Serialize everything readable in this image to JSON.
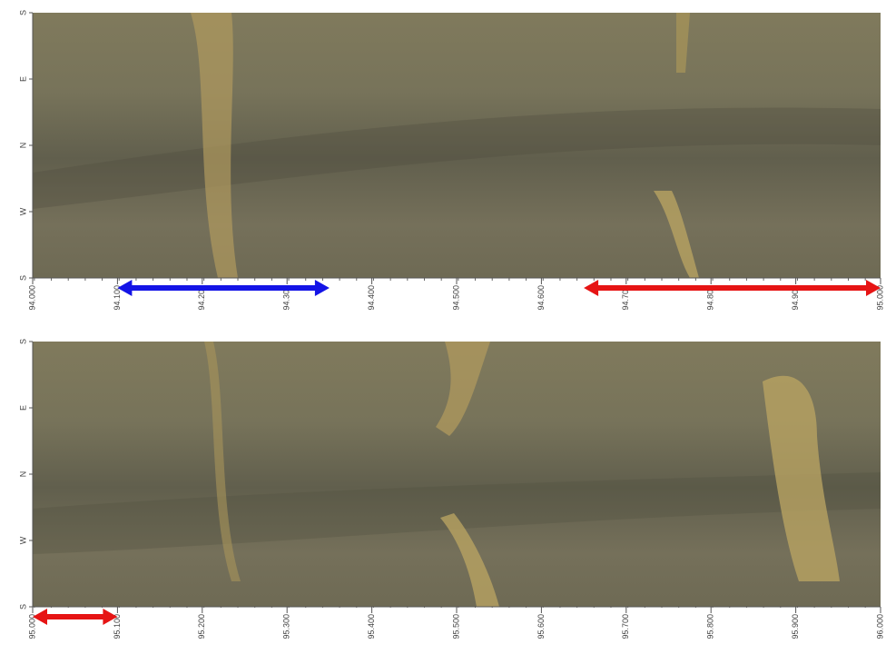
{
  "panels": [
    {
      "xlim": [
        94,
        95
      ],
      "xticks": [
        {
          "value": 94,
          "label": "94.000"
        },
        {
          "value": 94.1,
          "label": "94.100"
        },
        {
          "value": 94.2,
          "label": "94.200"
        },
        {
          "value": 94.3,
          "label": "94.300"
        },
        {
          "value": 94.4,
          "label": "94.400"
        },
        {
          "value": 94.5,
          "label": "94.500"
        },
        {
          "value": 94.6,
          "label": "94.600"
        },
        {
          "value": 94.7,
          "label": "94.700"
        },
        {
          "value": 94.8,
          "label": "94.800"
        },
        {
          "value": 94.9,
          "label": "94.900"
        },
        {
          "value": 95,
          "label": "95.000"
        }
      ],
      "y_labels": [
        "S",
        "E",
        "N",
        "W",
        "S"
      ],
      "arrows": [
        {
          "from": 94.1,
          "to": 94.35,
          "color": "#1414e6"
        },
        {
          "from": 94.65,
          "to": 95,
          "color": "#e61414"
        }
      ]
    },
    {
      "xlim": [
        95,
        96
      ],
      "xticks": [
        {
          "value": 95,
          "label": "95.000"
        },
        {
          "value": 95.1,
          "label": "95.100"
        },
        {
          "value": 95.2,
          "label": "95.200"
        },
        {
          "value": 95.3,
          "label": "95.300"
        },
        {
          "value": 95.4,
          "label": "95.400"
        },
        {
          "value": 95.5,
          "label": "95.500"
        },
        {
          "value": 95.6,
          "label": "95.600"
        },
        {
          "value": 95.7,
          "label": "95.700"
        },
        {
          "value": 95.8,
          "label": "95.800"
        },
        {
          "value": 95.9,
          "label": "95.900"
        },
        {
          "value": 96,
          "label": "96.000"
        }
      ],
      "y_labels": [
        "S",
        "E",
        "N",
        "W",
        "S"
      ],
      "arrows": [
        {
          "from": 95,
          "to": 95.1,
          "color": "#e61414"
        }
      ]
    }
  ]
}
